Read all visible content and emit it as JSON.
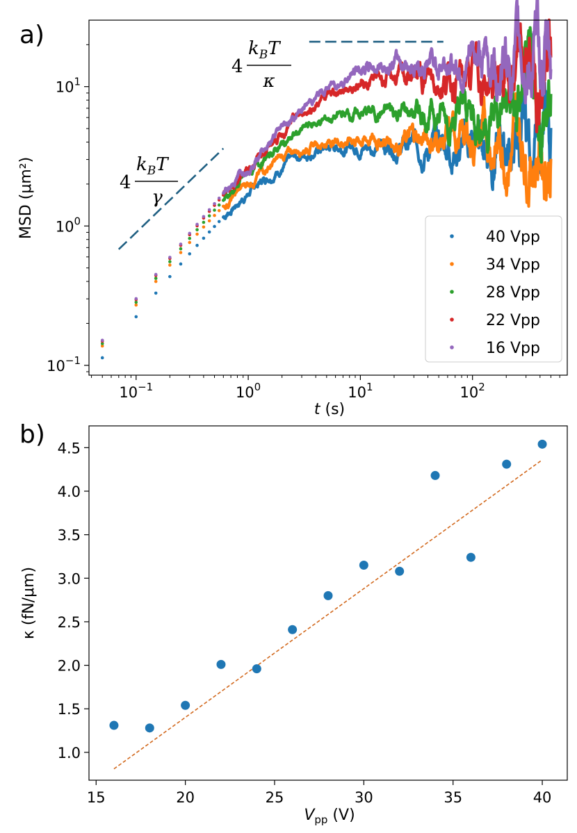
{
  "chart_data": [
    {
      "panel": "a)",
      "type": "scatter",
      "xscale": "log",
      "yscale": "log",
      "xlim": [
        0.038,
        700
      ],
      "ylim": [
        0.085,
        30
      ],
      "xlabel_var": "t",
      "xlabel_unit": " (s)",
      "ylabel": "MSD (μm²)",
      "xticks": [
        {
          "v": 0.1,
          "base": "10",
          "exp": "−1"
        },
        {
          "v": 1,
          "base": "10",
          "exp": "0"
        },
        {
          "v": 10,
          "base": "10",
          "exp": "1"
        },
        {
          "v": 100,
          "base": "10",
          "exp": "2"
        }
      ],
      "yticks": [
        {
          "v": 0.1,
          "base": "10",
          "exp": "−1"
        },
        {
          "v": 1,
          "base": "10",
          "exp": "0"
        },
        {
          "v": 10,
          "base": "10",
          "exp": "1"
        }
      ],
      "legend_position": "lower-right",
      "series": [
        {
          "name": "40 Vpp",
          "color": "#1f77b4",
          "plateau": 3.8,
          "tau": 0.95,
          "y0": 0.115
        },
        {
          "name": "34 Vpp",
          "color": "#ff7f0e",
          "plateau": 4.2,
          "tau": 0.88,
          "y0": 0.14
        },
        {
          "name": "28 Vpp",
          "color": "#2ca02c",
          "plateau": 6.5,
          "tau": 1.35,
          "y0": 0.145
        },
        {
          "name": "22 Vpp",
          "color": "#d62728",
          "plateau": 11.5,
          "tau": 2.35,
          "y0": 0.15
        },
        {
          "name": "16 Vpp",
          "color": "#9467bd",
          "plateau": 15.0,
          "tau": 3.0,
          "y0": 0.152
        }
      ],
      "annotations": [
        {
          "id": "diffusive",
          "coef": "4",
          "num": "k",
          "num_sub": "B",
          "num_rest": "T",
          "den": "γ",
          "line_x": [
            0.07,
            0.6
          ],
          "line_y": [
            0.68,
            3.6
          ]
        },
        {
          "id": "plateau",
          "coef": "4",
          "num": "k",
          "num_sub": "B",
          "num_rest": "T",
          "den": "κ",
          "line_x": [
            3.5,
            55
          ],
          "line_y": [
            21,
            21
          ]
        }
      ],
      "guide_color": "#1f5f82"
    },
    {
      "panel": "b)",
      "type": "scatter",
      "xlim": [
        14.6,
        41.4
      ],
      "ylim": [
        0.68,
        4.75
      ],
      "xlabel_var": "V",
      "xlabel_sub": "pp",
      "xlabel_unit": " (V)",
      "ylabel": "κ (fN/μm)",
      "xticks": [
        15,
        20,
        25,
        30,
        35,
        40
      ],
      "yticks": [
        "1.0",
        "1.5",
        "2.0",
        "2.5",
        "3.0",
        "3.5",
        "4.0",
        "4.5"
      ],
      "points": {
        "x": [
          16,
          18,
          20,
          22,
          24,
          26,
          28,
          30,
          32,
          34,
          36,
          38,
          40
        ],
        "y": [
          1.31,
          1.28,
          1.54,
          2.01,
          1.96,
          2.41,
          2.8,
          3.15,
          3.08,
          4.18,
          3.24,
          4.31,
          4.54
        ],
        "color": "#1f77b4"
      },
      "fit": {
        "x": [
          16,
          40
        ],
        "y": [
          0.81,
          4.36
        ],
        "color": "#d2691e",
        "style": "dashed"
      }
    }
  ]
}
